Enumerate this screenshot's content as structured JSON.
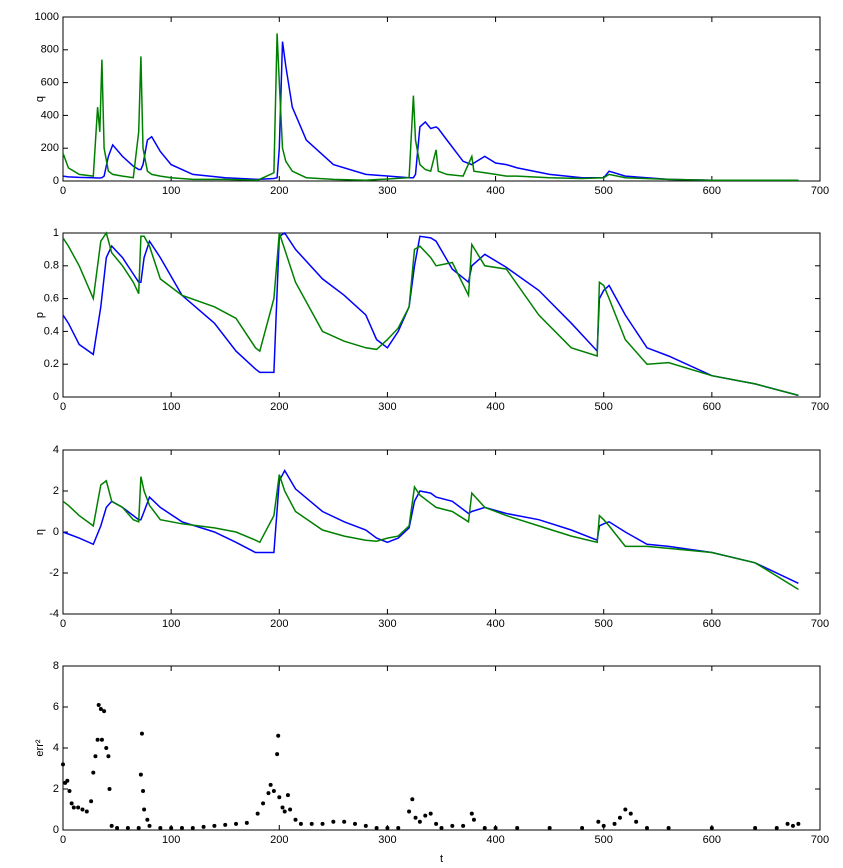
{
  "chart_data": [
    {
      "type": "line",
      "ylabel": "q",
      "xlim": [
        0,
        700
      ],
      "xticks": [
        0,
        100,
        200,
        300,
        400,
        500,
        600,
        700
      ],
      "ylim": [
        0,
        1000
      ],
      "yticks": [
        0,
        200,
        400,
        600,
        800,
        1000
      ],
      "x": [
        0,
        5,
        15,
        28,
        32,
        34,
        36,
        38,
        42,
        46,
        55,
        65,
        70,
        72,
        74,
        78,
        82,
        90,
        100,
        120,
        150,
        180,
        195,
        198,
        200,
        203,
        206,
        212,
        225,
        250,
        280,
        320,
        324,
        326,
        330,
        335,
        340,
        345,
        347,
        355,
        370,
        378,
        380,
        390,
        400,
        410,
        420,
        450,
        480,
        500,
        505,
        520,
        560,
        600,
        680
      ],
      "series": [
        {
          "color": "#0000ff",
          "values": [
            30,
            25,
            22,
            20,
            18,
            18,
            20,
            30,
            150,
            220,
            150,
            90,
            70,
            70,
            100,
            250,
            270,
            180,
            100,
            40,
            20,
            10,
            15,
            20,
            200,
            850,
            700,
            450,
            250,
            100,
            40,
            20,
            20,
            40,
            330,
            360,
            320,
            330,
            320,
            250,
            120,
            100,
            110,
            150,
            110,
            100,
            80,
            40,
            20,
            20,
            60,
            30,
            10,
            5,
            5
          ]
        },
        {
          "color": "#008000",
          "values": [
            170,
            80,
            40,
            30,
            450,
            300,
            740,
            200,
            60,
            40,
            30,
            20,
            300,
            760,
            200,
            60,
            40,
            30,
            20,
            10,
            10,
            5,
            50,
            900,
            600,
            200,
            120,
            60,
            20,
            10,
            5,
            20,
            520,
            250,
            100,
            70,
            60,
            190,
            60,
            40,
            30,
            150,
            60,
            50,
            40,
            30,
            30,
            20,
            15,
            20,
            40,
            20,
            10,
            5,
            5
          ]
        }
      ]
    },
    {
      "type": "line",
      "ylabel": "p",
      "xlim": [
        0,
        700
      ],
      "xticks": [
        0,
        100,
        200,
        300,
        400,
        500,
        600,
        700
      ],
      "ylim": [
        0,
        1
      ],
      "yticks": [
        0,
        0.2,
        0.4,
        0.6,
        0.8,
        1
      ],
      "x": [
        0,
        5,
        15,
        28,
        35,
        40,
        45,
        55,
        65,
        70,
        72,
        75,
        80,
        90,
        110,
        140,
        160,
        178,
        182,
        195,
        200,
        205,
        215,
        240,
        260,
        280,
        290,
        300,
        310,
        320,
        325,
        330,
        340,
        345,
        360,
        375,
        378,
        390,
        410,
        440,
        470,
        494,
        496,
        500,
        505,
        520,
        540,
        560,
        600,
        640,
        680
      ],
      "series": [
        {
          "color": "#0000ff",
          "values": [
            0.5,
            0.45,
            0.32,
            0.26,
            0.55,
            0.85,
            0.92,
            0.85,
            0.75,
            0.7,
            0.7,
            0.85,
            0.95,
            0.85,
            0.62,
            0.45,
            0.28,
            0.17,
            0.15,
            0.15,
            0.98,
            1.0,
            0.9,
            0.72,
            0.62,
            0.5,
            0.35,
            0.3,
            0.4,
            0.55,
            0.8,
            0.98,
            0.97,
            0.95,
            0.78,
            0.7,
            0.8,
            0.87,
            0.79,
            0.65,
            0.45,
            0.28,
            0.6,
            0.65,
            0.68,
            0.5,
            0.3,
            0.25,
            0.13,
            0.08,
            0.01
          ]
        },
        {
          "color": "#008000",
          "values": [
            0.97,
            0.92,
            0.8,
            0.6,
            0.95,
            1.0,
            0.88,
            0.8,
            0.7,
            0.63,
            0.98,
            0.98,
            0.92,
            0.72,
            0.62,
            0.55,
            0.48,
            0.3,
            0.28,
            0.6,
            1.0,
            0.9,
            0.7,
            0.4,
            0.34,
            0.3,
            0.29,
            0.35,
            0.42,
            0.55,
            0.9,
            0.92,
            0.85,
            0.8,
            0.82,
            0.62,
            0.93,
            0.8,
            0.78,
            0.5,
            0.3,
            0.25,
            0.7,
            0.68,
            0.6,
            0.35,
            0.2,
            0.21,
            0.13,
            0.08,
            0.01
          ]
        }
      ]
    },
    {
      "type": "line",
      "ylabel": "η",
      "xlim": [
        0,
        700
      ],
      "xticks": [
        0,
        100,
        200,
        300,
        400,
        500,
        600,
        700
      ],
      "ylim": [
        -4,
        4
      ],
      "yticks": [
        -4,
        -2,
        0,
        2,
        4
      ],
      "x": [
        0,
        5,
        15,
        28,
        35,
        40,
        45,
        55,
        65,
        70,
        72,
        75,
        80,
        90,
        110,
        140,
        160,
        178,
        182,
        195,
        200,
        205,
        215,
        240,
        260,
        280,
        290,
        300,
        310,
        320,
        325,
        330,
        340,
        345,
        360,
        375,
        378,
        390,
        410,
        440,
        470,
        494,
        496,
        500,
        505,
        520,
        540,
        560,
        600,
        640,
        680
      ],
      "series": [
        {
          "color": "#0000ff",
          "values": [
            0,
            -0.1,
            -0.3,
            -0.6,
            0.3,
            1.2,
            1.5,
            1.2,
            0.8,
            0.6,
            0.6,
            1.0,
            1.7,
            1.2,
            0.5,
            0,
            -0.5,
            -1.0,
            -1.0,
            -1.0,
            2.5,
            3.0,
            2.1,
            1.0,
            0.5,
            0.1,
            -0.3,
            -0.5,
            -0.3,
            0.2,
            1.5,
            2.0,
            1.9,
            1.7,
            1.5,
            0.9,
            1.0,
            1.2,
            0.9,
            0.6,
            0.1,
            -0.4,
            0.3,
            0.4,
            0.5,
            0.0,
            -0.6,
            -0.7,
            -1.0,
            -1.5,
            -2.5
          ]
        },
        {
          "color": "#008000",
          "values": [
            1.5,
            1.3,
            0.8,
            0.3,
            2.3,
            2.5,
            1.5,
            1.2,
            0.6,
            0.5,
            2.7,
            2.0,
            1.3,
            0.6,
            0.4,
            0.2,
            0,
            -0.4,
            -0.5,
            0.8,
            2.8,
            2.0,
            1.0,
            0.1,
            -0.2,
            -0.4,
            -0.45,
            -0.3,
            -0.2,
            0.3,
            2.2,
            1.8,
            1.4,
            1.2,
            1.0,
            0.5,
            1.9,
            1.2,
            0.8,
            0.3,
            -0.2,
            -0.5,
            0.8,
            0.6,
            0.3,
            -0.7,
            -0.7,
            -0.8,
            -1.0,
            -1.5,
            -2.8
          ]
        }
      ]
    },
    {
      "type": "scatter",
      "ylabel": "err²",
      "xlabel": "t",
      "xlim": [
        0,
        700
      ],
      "xticks": [
        0,
        100,
        200,
        300,
        400,
        500,
        600,
        700
      ],
      "ylim": [
        0,
        8
      ],
      "yticks": [
        0,
        2,
        4,
        6,
        8
      ],
      "color": "#000000",
      "x": [
        0,
        2,
        4,
        6,
        8,
        10,
        14,
        18,
        22,
        26,
        28,
        30,
        32,
        33,
        35,
        36,
        38,
        40,
        42,
        43,
        45,
        50,
        60,
        70,
        72,
        73,
        74,
        75,
        78,
        80,
        90,
        100,
        110,
        120,
        130,
        140,
        150,
        160,
        170,
        180,
        185,
        190,
        192,
        195,
        198,
        199,
        200,
        203,
        205,
        208,
        210,
        215,
        220,
        230,
        240,
        250,
        260,
        270,
        280,
        290,
        300,
        310,
        320,
        323,
        326,
        330,
        335,
        340,
        345,
        350,
        360,
        370,
        378,
        380,
        390,
        400,
        420,
        450,
        480,
        495,
        500,
        510,
        515,
        520,
        525,
        530,
        540,
        560,
        600,
        640,
        660,
        670,
        675,
        680
      ],
      "values": [
        3.2,
        2.3,
        2.4,
        1.9,
        1.3,
        1.1,
        1.1,
        1.0,
        0.9,
        1.4,
        2.8,
        3.6,
        4.4,
        6.1,
        5.9,
        4.4,
        5.8,
        4.0,
        3.6,
        2.0,
        0.2,
        0.1,
        0.1,
        0.1,
        2.7,
        4.7,
        1.9,
        1.0,
        0.5,
        0.2,
        0.1,
        0.1,
        0.1,
        0.1,
        0.15,
        0.2,
        0.25,
        0.3,
        0.35,
        0.8,
        1.3,
        1.8,
        2.2,
        1.9,
        3.7,
        4.6,
        1.6,
        1.1,
        0.9,
        1.7,
        1.0,
        0.5,
        0.3,
        0.3,
        0.3,
        0.4,
        0.4,
        0.3,
        0.2,
        0.1,
        0.1,
        0.1,
        0.9,
        1.5,
        0.6,
        0.4,
        0.7,
        0.8,
        0.3,
        0.1,
        0.2,
        0.2,
        0.8,
        0.5,
        0.1,
        0.1,
        0.1,
        0.1,
        0.1,
        0.4,
        0.2,
        0.3,
        0.6,
        1.0,
        0.8,
        0.4,
        0.1,
        0.1,
        0.1,
        0.1,
        0.1,
        0.3,
        0.2,
        0.3
      ]
    }
  ]
}
